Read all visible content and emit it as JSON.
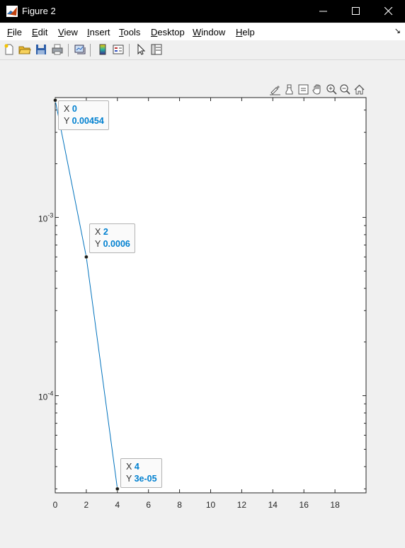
{
  "window": {
    "title": "Figure 2"
  },
  "menu": {
    "items": [
      {
        "key": "F",
        "rest": "ile"
      },
      {
        "key": "E",
        "rest": "dit"
      },
      {
        "key": "V",
        "rest": "iew"
      },
      {
        "key": "I",
        "rest": "nsert"
      },
      {
        "key": "T",
        "rest": "ools"
      },
      {
        "key": "D",
        "rest": "esktop"
      },
      {
        "key": "W",
        "rest": "indow"
      },
      {
        "key": "H",
        "rest": "elp"
      }
    ]
  },
  "toolbar_icons": [
    "new-figure-icon",
    "open-file-icon",
    "save-icon",
    "print-icon",
    "link-plot-icon",
    "insert-colorbar-icon",
    "insert-legend-icon",
    "edit-plot-arrow-icon",
    "property-inspector-icon"
  ],
  "axes_toolbar_icons": [
    "brush-icon",
    "datatip-icon",
    "restore-view-icon",
    "pan-icon",
    "zoom-in-icon",
    "zoom-out-icon",
    "home-icon"
  ],
  "colors": {
    "line": "#0072bd",
    "datatip_value": "#0080d0"
  },
  "chart_data": {
    "type": "line",
    "x": [
      0,
      2,
      4
    ],
    "y": [
      0.00454,
      0.0006,
      3e-05
    ],
    "yscale": "log",
    "xlim": [
      0,
      20
    ],
    "ylim": [
      2.85e-05,
      0.0047
    ],
    "xticks": [
      0,
      2,
      4,
      6,
      8,
      10,
      12,
      14,
      16,
      18
    ],
    "yticks": [
      {
        "value": 0.001,
        "base": "10",
        "exp": "-3"
      },
      {
        "value": 0.0001,
        "base": "10",
        "exp": "-4"
      }
    ],
    "grid": false,
    "datatips": [
      {
        "x_label": "X",
        "x_text": "0",
        "y_label": "Y",
        "y_text": "0.00454"
      },
      {
        "x_label": "X",
        "x_text": "2",
        "y_label": "Y",
        "y_text": "0.0006"
      },
      {
        "x_label": "X",
        "x_text": "4",
        "y_label": "Y",
        "y_text": "3e-05"
      }
    ]
  }
}
